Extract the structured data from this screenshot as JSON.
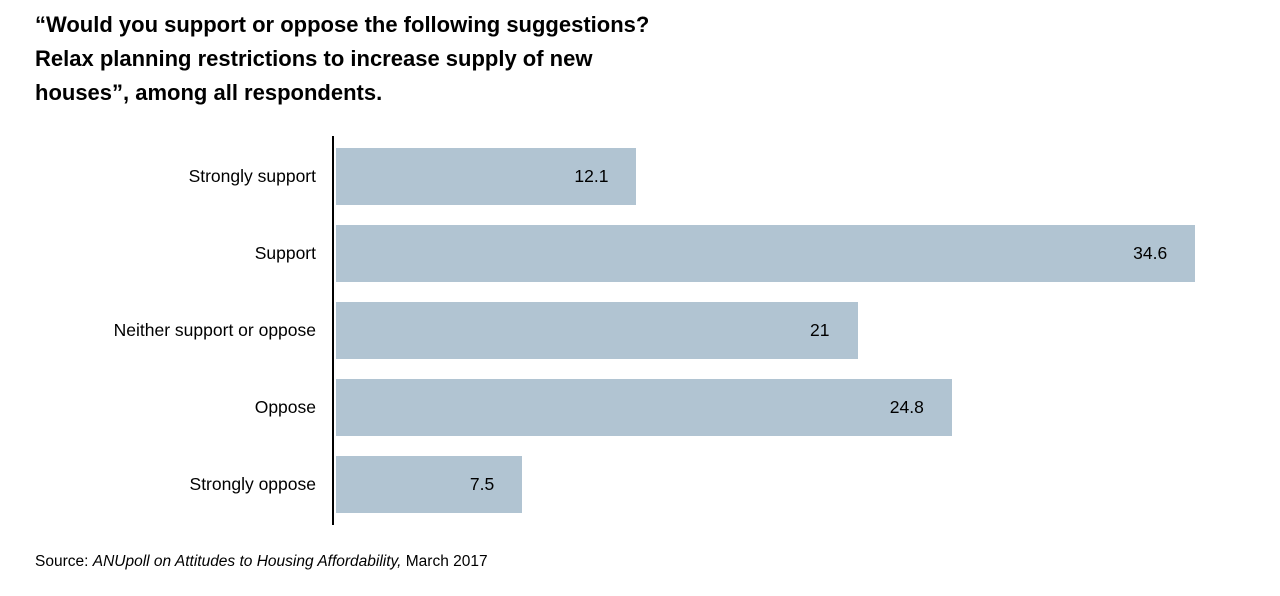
{
  "title": "“Would you support or oppose the following suggestions?\nRelax planning restrictions to increase supply of new\nhouses”, among all respondents.",
  "source": {
    "prefix": "Source: ",
    "italic": "ANUpoll on Attitudes to Housing Affordability,",
    "suffix": " March 2017"
  },
  "chart_data": {
    "type": "bar",
    "orientation": "horizontal",
    "title": "“Would you support or oppose the following suggestions? Relax planning restrictions to increase supply of new houses”, among all respondents.",
    "categories": [
      "Strongly support",
      "Support",
      "Neither support or oppose",
      "Oppose",
      "Strongly oppose"
    ],
    "values": [
      12.1,
      34.6,
      21,
      24.8,
      7.5
    ],
    "value_labels": [
      "12.1",
      "34.6",
      "21",
      "24.8",
      "7.5"
    ],
    "xlim": [
      0,
      36
    ],
    "bar_color": "#b1c4d2",
    "axis_color": "#000000",
    "grid": false,
    "legend": false,
    "value_label_position": "inside-end"
  }
}
